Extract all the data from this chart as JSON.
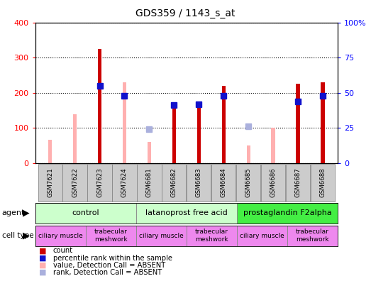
{
  "title": "GDS359 / 1143_s_at",
  "samples": [
    "GSM7621",
    "GSM7622",
    "GSM7623",
    "GSM7624",
    "GSM6681",
    "GSM6682",
    "GSM6683",
    "GSM6684",
    "GSM6685",
    "GSM6686",
    "GSM6687",
    "GSM6688"
  ],
  "count_values": [
    null,
    null,
    325,
    null,
    null,
    160,
    162,
    220,
    null,
    null,
    225,
    230
  ],
  "rank_values": [
    null,
    null,
    55,
    48,
    null,
    41,
    42,
    48,
    null,
    null,
    44,
    48
  ],
  "absent_value_values": [
    67,
    138,
    null,
    230,
    60,
    null,
    null,
    null,
    50,
    100,
    null,
    null
  ],
  "absent_rank_values": [
    null,
    null,
    null,
    null,
    24,
    null,
    null,
    null,
    26,
    null,
    null,
    null
  ],
  "ylim_left": [
    0,
    400
  ],
  "ylim_right": [
    0,
    100
  ],
  "yticks_left": [
    0,
    100,
    200,
    300,
    400
  ],
  "yticks_right": [
    0,
    25,
    50,
    75,
    100
  ],
  "yticklabels_right": [
    "0",
    "25",
    "50",
    "75",
    "100%"
  ],
  "color_count": "#cc0000",
  "color_rank": "#1111cc",
  "color_absent_value": "#ffb0b0",
  "color_absent_rank": "#aab0dd",
  "agent_groups": [
    {
      "label": "control",
      "start": 0,
      "end": 4,
      "color": "#ccffcc"
    },
    {
      "label": "latanoprost free acid",
      "start": 4,
      "end": 8,
      "color": "#ccffcc"
    },
    {
      "label": "prostaglandin F2alpha",
      "start": 8,
      "end": 12,
      "color": "#44ee44"
    }
  ],
  "cell_type_groups": [
    {
      "label": "ciliary muscle",
      "start": 0,
      "end": 2,
      "color": "#ee88ee"
    },
    {
      "label": "trabecular\nmeshwork",
      "start": 2,
      "end": 4,
      "color": "#ee88ee"
    },
    {
      "label": "ciliary muscle",
      "start": 4,
      "end": 6,
      "color": "#ee88ee"
    },
    {
      "label": "trabecular\nmeshwork",
      "start": 6,
      "end": 8,
      "color": "#ee88ee"
    },
    {
      "label": "ciliary muscle",
      "start": 8,
      "end": 10,
      "color": "#ee88ee"
    },
    {
      "label": "trabecular\nmeshwork",
      "start": 10,
      "end": 12,
      "color": "#ee88ee"
    }
  ],
  "legend_items": [
    {
      "label": "count",
      "color": "#cc0000"
    },
    {
      "label": "percentile rank within the sample",
      "color": "#1111cc"
    },
    {
      "label": "value, Detection Call = ABSENT",
      "color": "#ffb0b0"
    },
    {
      "label": "rank, Detection Call = ABSENT",
      "color": "#aab0dd"
    }
  ],
  "bar_width": 0.15,
  "marker_size": 6
}
